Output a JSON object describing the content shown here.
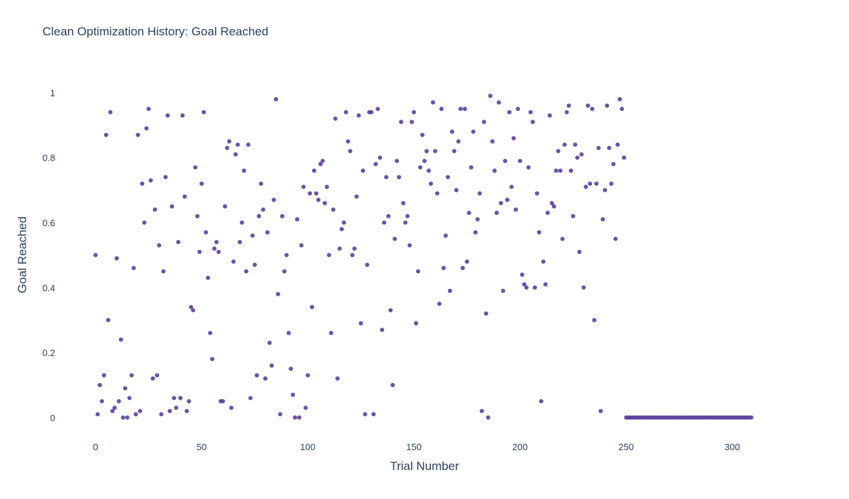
{
  "chart_data": {
    "type": "scatter",
    "title": "Clean Optimization History: Goal Reached",
    "xlabel": "Trial Number",
    "ylabel": "Goal Reached",
    "xlim": [
      -10,
      320
    ],
    "ylim": [
      -0.07,
      1.05
    ],
    "x_ticks": [
      0,
      50,
      100,
      150,
      200,
      250,
      300
    ],
    "x_tick_labels": [
      "0",
      "50",
      "100",
      "150",
      "200",
      "250",
      "300"
    ],
    "y_ticks": [
      0,
      0.2,
      0.4,
      0.6,
      0.8,
      1
    ],
    "y_tick_labels": [
      "0",
      "0.2",
      "0.4",
      "0.6",
      "0.8",
      "1"
    ],
    "grid": false,
    "legend": "none",
    "marker_color": "#5b3f9a",
    "x": [
      0,
      1,
      2,
      3,
      4,
      5,
      6,
      7,
      8,
      9,
      10,
      11,
      12,
      13,
      14,
      15,
      16,
      17,
      18,
      19,
      20,
      21,
      22,
      23,
      24,
      25,
      26,
      27,
      28,
      29,
      30,
      31,
      32,
      33,
      34,
      35,
      36,
      37,
      38,
      39,
      40,
      41,
      42,
      43,
      44,
      45,
      46,
      47,
      48,
      49,
      50,
      51,
      52,
      53,
      54,
      55,
      56,
      57,
      58,
      59,
      60,
      61,
      62,
      63,
      64,
      65,
      66,
      67,
      68,
      69,
      70,
      71,
      72,
      73,
      74,
      75,
      76,
      77,
      78,
      79,
      80,
      81,
      82,
      83,
      84,
      85,
      86,
      87,
      88,
      89,
      90,
      91,
      92,
      93,
      94,
      95,
      96,
      97,
      98,
      99,
      100,
      101,
      102,
      103,
      104,
      105,
      106,
      107,
      108,
      109,
      110,
      111,
      112,
      113,
      114,
      115,
      116,
      117,
      118,
      119,
      120,
      121,
      122,
      123,
      124,
      125,
      126,
      127,
      128,
      129,
      130,
      131,
      132,
      133,
      134,
      135,
      136,
      137,
      138,
      139,
      140,
      141,
      142,
      143,
      144,
      145,
      146,
      147,
      148,
      149,
      150,
      151,
      152,
      153,
      154,
      155,
      156,
      157,
      158,
      159,
      160,
      161,
      162,
      163,
      164,
      165,
      166,
      167,
      168,
      169,
      170,
      171,
      172,
      173,
      174,
      175,
      176,
      177,
      178,
      179,
      180,
      181,
      182,
      183,
      184,
      185,
      186,
      187,
      188,
      189,
      190,
      191,
      192,
      193,
      194,
      195,
      196,
      197,
      198,
      199,
      200,
      201,
      202,
      203,
      204,
      205,
      206,
      207,
      208,
      209,
      210,
      211,
      212,
      213,
      214,
      215,
      216,
      217,
      218,
      219,
      220,
      221,
      222,
      223,
      224,
      225,
      226,
      227,
      228,
      229,
      230,
      231,
      232,
      233,
      234,
      235,
      236,
      237,
      238,
      239,
      240,
      241,
      242,
      243,
      244,
      245,
      246,
      247,
      248,
      249,
      250,
      251,
      252,
      253,
      254,
      255,
      256,
      257,
      258,
      259,
      260,
      261,
      262,
      263,
      264,
      265,
      266,
      267,
      268,
      269,
      270,
      271,
      272,
      273,
      274,
      275,
      276,
      277,
      278,
      279,
      280,
      281,
      282,
      283,
      284,
      285,
      286,
      287,
      288,
      289,
      290,
      291,
      292,
      293,
      294,
      295,
      296,
      297,
      298,
      299,
      300,
      301,
      302,
      303,
      304,
      305,
      306,
      307,
      308,
      309
    ],
    "y": [
      0.5,
      0.01,
      0.1,
      0.05,
      0.13,
      0.87,
      0.3,
      0.94,
      0.02,
      0.03,
      0.49,
      0.05,
      0.24,
      0.0,
      0.09,
      0.0,
      0.06,
      0.13,
      0.46,
      0.01,
      0.87,
      0.02,
      0.72,
      0.6,
      0.89,
      0.95,
      0.73,
      0.12,
      0.64,
      0.13,
      0.53,
      0.01,
      0.45,
      0.74,
      0.93,
      0.02,
      0.65,
      0.06,
      0.03,
      0.54,
      0.06,
      0.93,
      0.68,
      0.02,
      0.05,
      0.34,
      0.33,
      0.77,
      0.62,
      0.51,
      0.72,
      0.94,
      0.57,
      0.43,
      0.26,
      0.18,
      0.52,
      0.54,
      0.51,
      0.05,
      0.05,
      0.65,
      0.83,
      0.85,
      0.03,
      0.48,
      0.81,
      0.84,
      0.54,
      0.6,
      0.76,
      0.45,
      0.84,
      0.06,
      0.56,
      0.47,
      0.13,
      0.62,
      0.72,
      0.64,
      0.12,
      0.57,
      0.23,
      0.16,
      0.67,
      0.98,
      0.38,
      0.01,
      0.62,
      0.45,
      0.5,
      0.26,
      0.15,
      0.07,
      0.0,
      0.61,
      0.0,
      0.53,
      0.71,
      0.03,
      0.13,
      0.69,
      0.34,
      0.76,
      0.69,
      0.67,
      0.78,
      0.79,
      0.66,
      0.71,
      0.5,
      0.26,
      0.64,
      0.92,
      0.12,
      0.52,
      0.58,
      0.6,
      0.94,
      0.85,
      0.82,
      0.5,
      0.52,
      0.68,
      0.93,
      0.29,
      0.76,
      0.01,
      0.47,
      0.94,
      0.94,
      0.01,
      0.78,
      0.95,
      0.8,
      0.27,
      0.6,
      0.74,
      0.62,
      0.33,
      0.1,
      0.55,
      0.79,
      0.74,
      0.91,
      0.66,
      0.6,
      0.62,
      0.53,
      0.91,
      0.94,
      0.29,
      0.45,
      0.77,
      0.87,
      0.79,
      0.82,
      0.76,
      0.72,
      0.97,
      0.82,
      0.69,
      0.35,
      0.95,
      0.46,
      0.56,
      0.74,
      0.39,
      0.88,
      0.82,
      0.7,
      0.85,
      0.95,
      0.46,
      0.95,
      0.48,
      0.63,
      0.77,
      0.88,
      0.57,
      0.61,
      0.69,
      0.02,
      0.91,
      0.32,
      0.0,
      0.99,
      0.85,
      0.76,
      0.63,
      0.97,
      0.66,
      0.39,
      0.79,
      0.67,
      0.94,
      0.71,
      0.86,
      0.64,
      0.95,
      0.79,
      0.44,
      0.41,
      0.4,
      0.77,
      0.94,
      0.91,
      0.4,
      0.69,
      0.57,
      0.05,
      0.48,
      0.41,
      0.63,
      0.93,
      0.66,
      0.65,
      0.76,
      0.82,
      0.76,
      0.55,
      0.84,
      0.94,
      0.96,
      0.76,
      0.62,
      0.84,
      0.8,
      0.51,
      0.81,
      0.4,
      0.71,
      0.96,
      0.72,
      0.95,
      0.3,
      0.72,
      0.83,
      0.02,
      0.61,
      0.7,
      0.96,
      0.83,
      0.72,
      0.78,
      0.55,
      0.84,
      0.98,
      0.95,
      0.8,
      0,
      0,
      0,
      0,
      0,
      0,
      0,
      0,
      0,
      0,
      0,
      0,
      0,
      0,
      0,
      0,
      0,
      0,
      0,
      0,
      0,
      0,
      0,
      0,
      0,
      0,
      0,
      0,
      0,
      0,
      0,
      0,
      0,
      0,
      0,
      0,
      0,
      0,
      0,
      0,
      0,
      0,
      0,
      0,
      0,
      0,
      0,
      0,
      0,
      0,
      0,
      0,
      0,
      0,
      0,
      0,
      0,
      0,
      0,
      0
    ]
  }
}
